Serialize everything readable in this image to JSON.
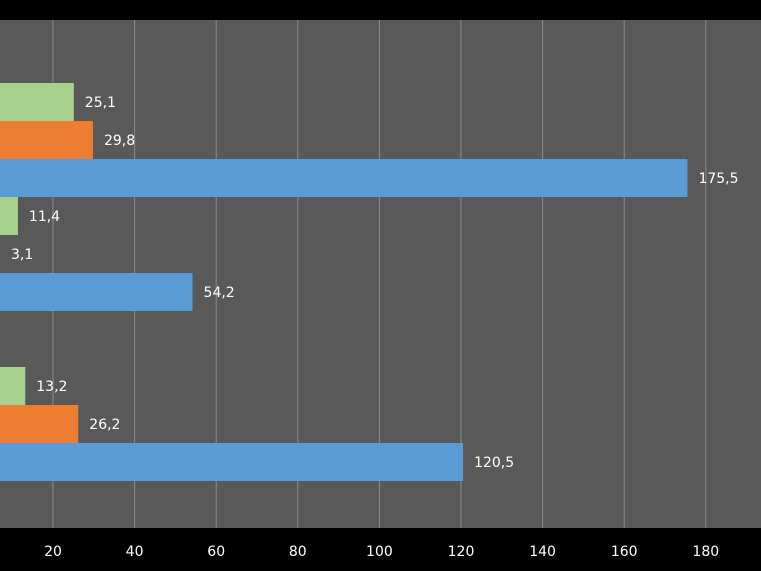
{
  "chart_data": {
    "type": "bar",
    "orientation": "horizontal",
    "categories": [
      "",
      "",
      ""
    ],
    "series": [
      {
        "values": [
          120.5,
          54.2,
          175.5
        ],
        "labels": [
          "120,5",
          "54,2",
          "175,5"
        ],
        "color": "#5b9bd5"
      },
      {
        "values": [
          26.2,
          3.1,
          29.8
        ],
        "labels": [
          "26,2",
          "3,1",
          "29,8"
        ],
        "color": "#ed7d31"
      },
      {
        "values": [
          13.2,
          11.4,
          25.1
        ],
        "labels": [
          "13,2",
          "11,4",
          "25,1"
        ],
        "color": "#a9d18e"
      }
    ],
    "x_ticks": [
      "20",
      "40",
      "60",
      "80",
      "100",
      "120",
      "140",
      "160",
      "180"
    ],
    "xlim": [
      8,
      200
    ],
    "grid": true,
    "colors": {
      "page_background": "#000000",
      "plot_background": "#595959",
      "gridline": "#8c8c8c",
      "axis": "#000000",
      "text": "#ffffff"
    }
  }
}
